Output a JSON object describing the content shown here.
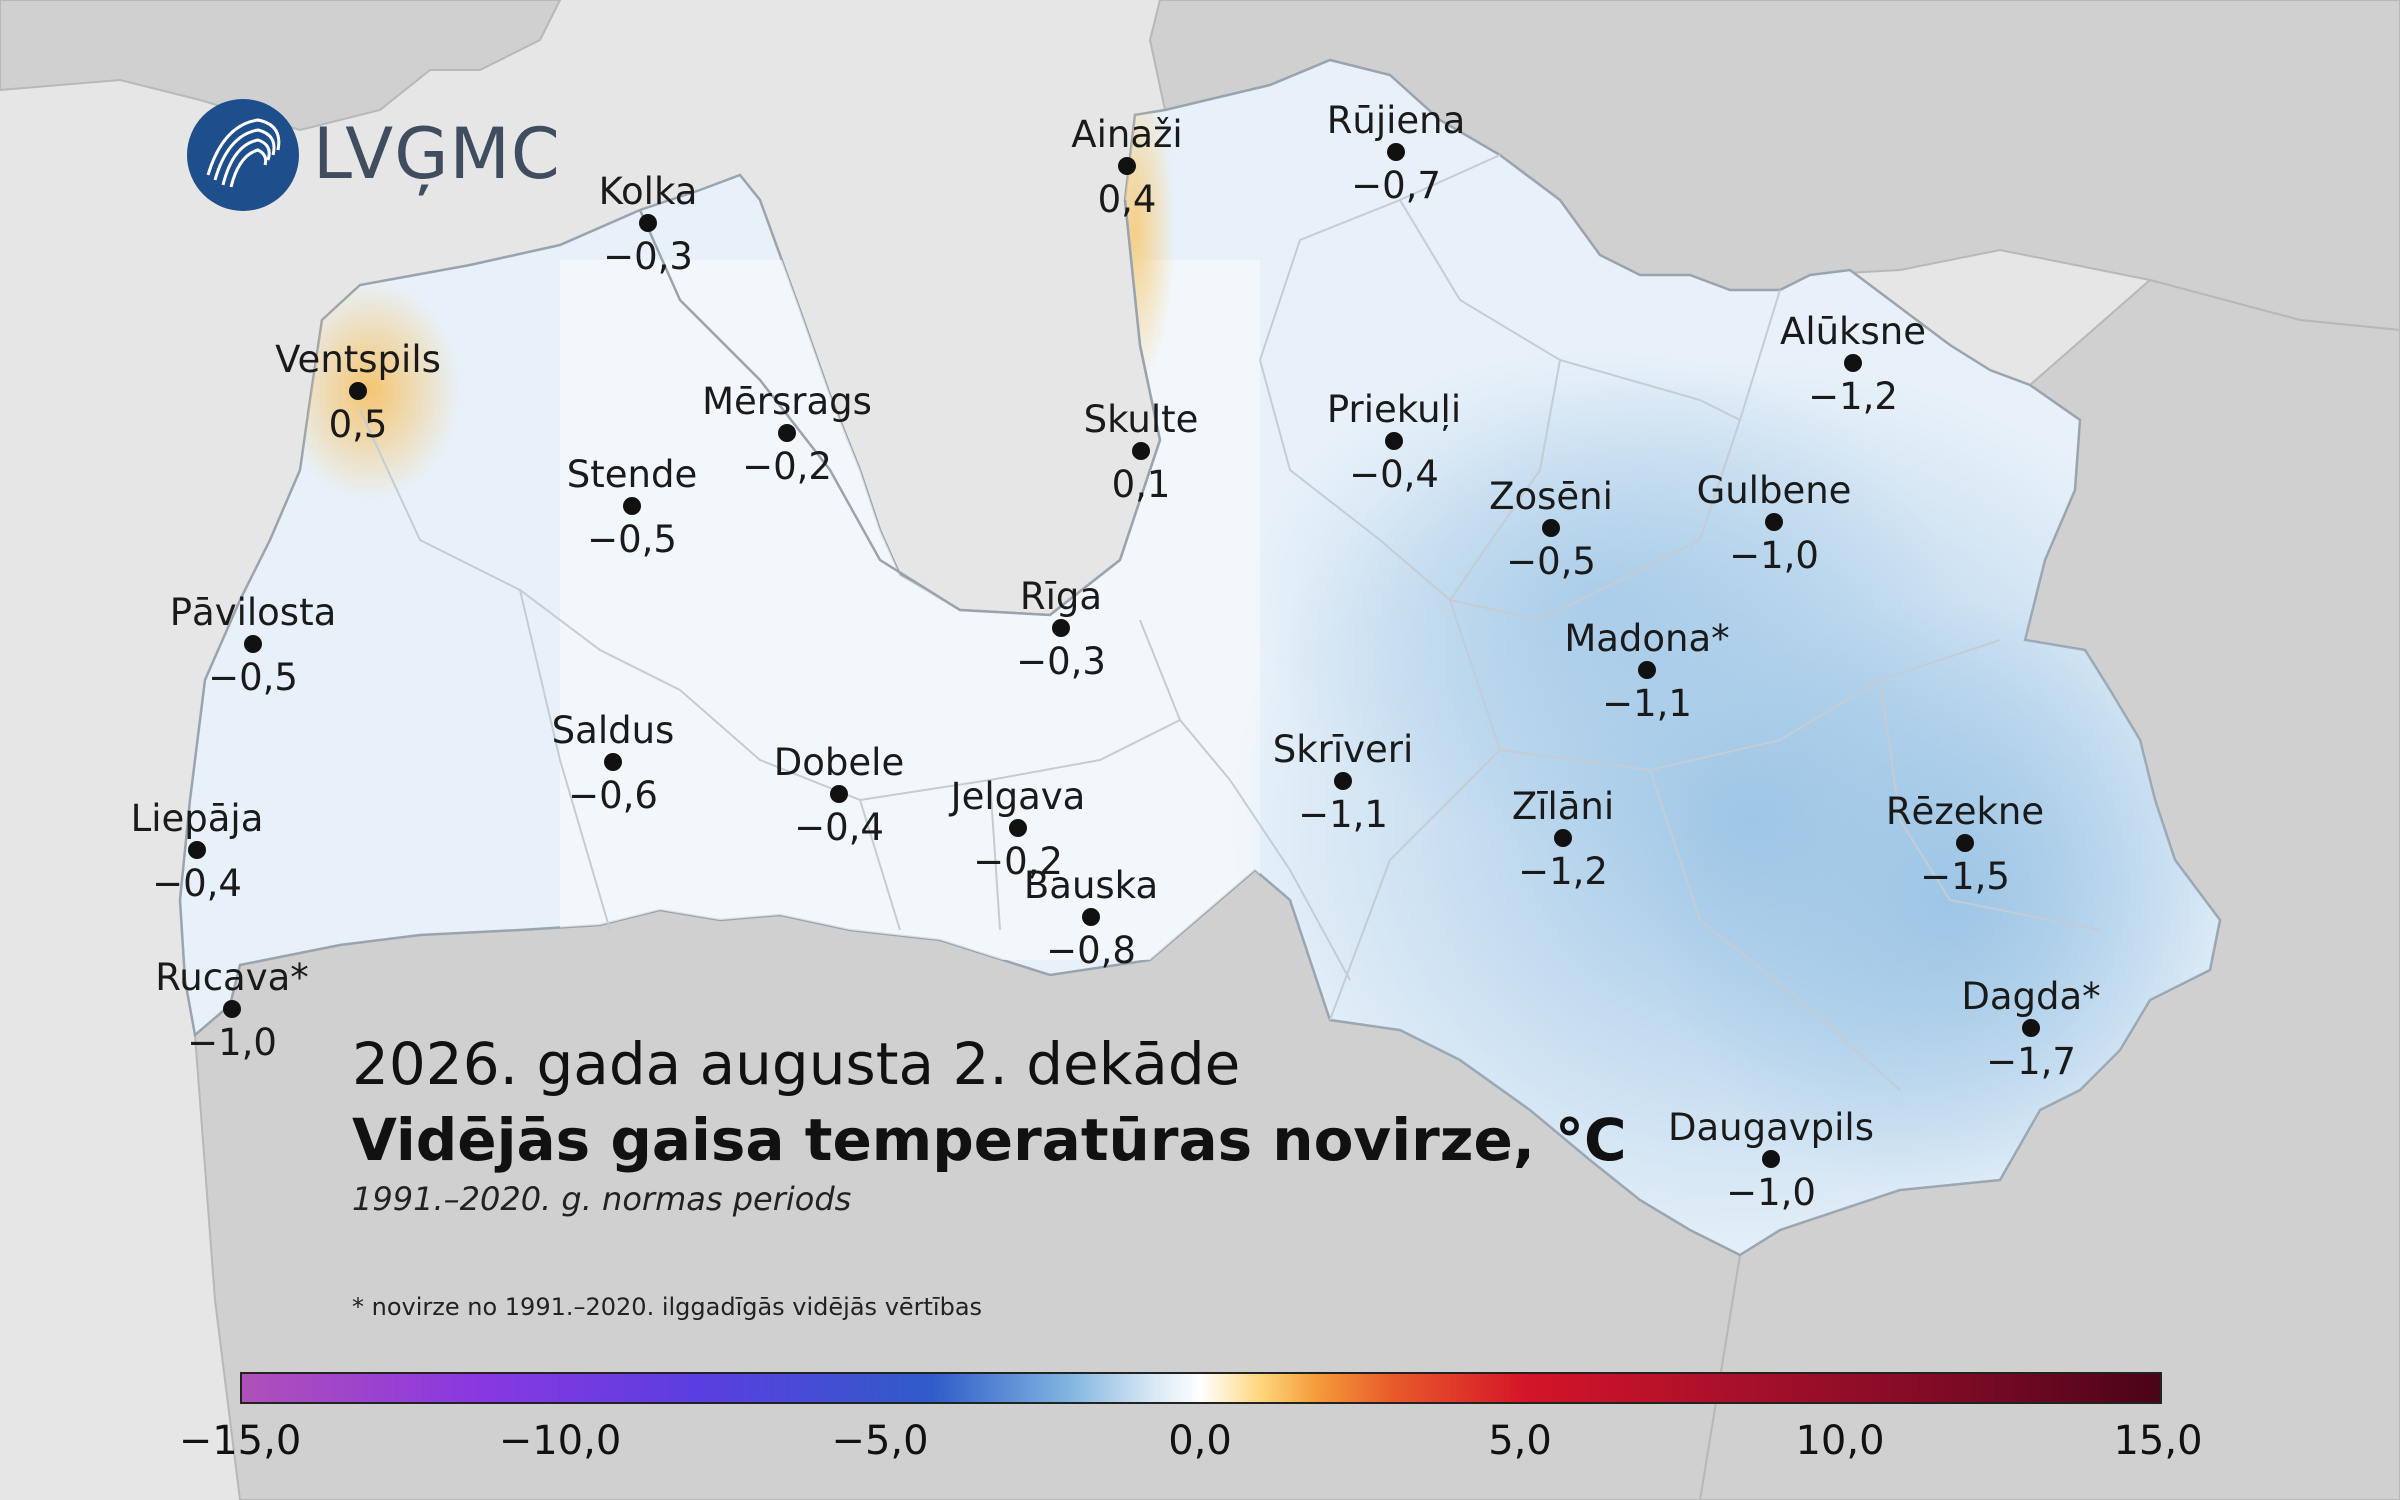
{
  "logo": {
    "text": "LVĢMC",
    "icon": "lvgmc-wave-icon"
  },
  "title": {
    "line1": "2026. gada augusta 2. dekāde",
    "line2": "Vidējās gaisa temperatūras novirze, °C",
    "line3": "1991.–2020. g. normas periods"
  },
  "footnote": "* novirze no 1991.–2020. ilggadīgās vidējās vērtības",
  "stations": [
    {
      "name": "Kolka",
      "value": "−0,3"
    },
    {
      "name": "Ventspils",
      "value": "0,5"
    },
    {
      "name": "Mērsrags",
      "value": "−0,2"
    },
    {
      "name": "Stende",
      "value": "−0,5"
    },
    {
      "name": "Pāvilosta",
      "value": "−0,5"
    },
    {
      "name": "Saldus",
      "value": "−0,6"
    },
    {
      "name": "Dobele",
      "value": "−0,4"
    },
    {
      "name": "Liepāja",
      "value": "−0,4"
    },
    {
      "name": "Rucava*",
      "value": "−1,0"
    },
    {
      "name": "Ainaži",
      "value": "0,4"
    },
    {
      "name": "Rūjiena",
      "value": "−0,7"
    },
    {
      "name": "Skulte",
      "value": "0,1"
    },
    {
      "name": "Priekuļi",
      "value": "−0,4"
    },
    {
      "name": "Rīga",
      "value": "−0,3"
    },
    {
      "name": "Jelgava",
      "value": "−0,2"
    },
    {
      "name": "Bauska",
      "value": "−0,8"
    },
    {
      "name": "Alūksne",
      "value": "−1,2"
    },
    {
      "name": "Gulbene",
      "value": "−1,0"
    },
    {
      "name": "Zosēni",
      "value": "−0,5"
    },
    {
      "name": "Madona*",
      "value": "−1,1"
    },
    {
      "name": "Skrīveri",
      "value": "−1,1"
    },
    {
      "name": "Zīlāni",
      "value": "−1,2"
    },
    {
      "name": "Rēzekne",
      "value": "−1,5"
    },
    {
      "name": "Dagda*",
      "value": "−1,7"
    },
    {
      "name": "Daugavpils",
      "value": "−1,0"
    }
  ],
  "colorbar": {
    "ticks": [
      "−15,0",
      "−10,0",
      "−5,0",
      "0,0",
      "5,0",
      "10,0",
      "15,0"
    ],
    "colors": [
      "#b050b8",
      "#5a3ee0",
      "#7fb4e0",
      "#ffffff",
      "#f59c3a",
      "#d41428",
      "#4a0418"
    ]
  },
  "colors": {
    "sea": "#e6e6e6",
    "neighbor_land": "#cfcfcf",
    "cold": "#b4d0ea",
    "warm": "#f5c97a"
  }
}
